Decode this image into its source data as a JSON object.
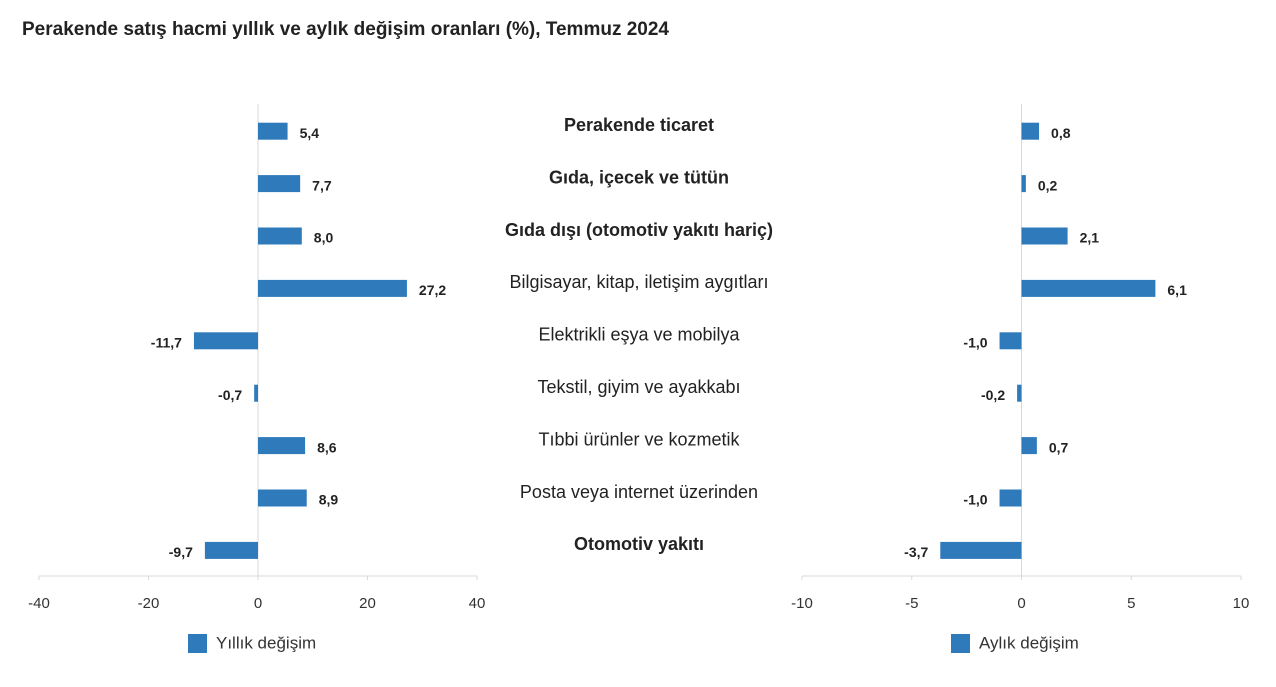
{
  "chart_data": {
    "type": "bar",
    "orientation": "horizontal",
    "title": "Perakende satış hacmi yıllık ve aylık değişim oranları (%), Temmuz 2024",
    "categories": [
      "Perakende ticaret",
      "Gıda, içecek ve tütün",
      "Gıda dışı (otomotiv yakıtı hariç)",
      "Bilgisayar, kitap, iletişim aygıtları",
      "Elektrikli eşya ve mobilya",
      "Tekstil, giyim ve ayakkabı",
      "Tıbbi ürünler ve kozmetik",
      "Posta veya internet üzerinden",
      "Otomotiv yakıtı"
    ],
    "category_bold": [
      true,
      true,
      true,
      false,
      false,
      false,
      false,
      false,
      true
    ],
    "series": [
      {
        "name": "Yıllık değişim",
        "color": "#2e7abb",
        "values": [
          5.4,
          7.7,
          8.0,
          27.2,
          -11.7,
          -0.7,
          8.6,
          8.9,
          -9.7
        ],
        "value_labels": [
          "5,4",
          "7,7",
          "8,0",
          "27,2",
          "-11,7",
          "-0,7",
          "8,6",
          "8,9",
          "-9,7"
        ],
        "xlim": [
          -40,
          40
        ],
        "xticks": [
          -40,
          -20,
          0,
          20,
          40
        ]
      },
      {
        "name": "Aylık değişim",
        "color": "#2e7abb",
        "values": [
          0.8,
          0.2,
          2.1,
          6.1,
          -1.0,
          -0.2,
          0.7,
          -1.0,
          -3.7
        ],
        "value_labels": [
          "0,8",
          "0,2",
          "2,1",
          "6,1",
          "-1,0",
          "-0,2",
          "0,7",
          "-1,0",
          "-3,7"
        ],
        "xlim": [
          -10,
          10
        ],
        "xticks": [
          -10,
          -5,
          0,
          5,
          10
        ]
      }
    ]
  }
}
